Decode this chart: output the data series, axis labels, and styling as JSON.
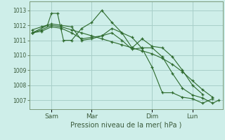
{
  "background_color": "#ceeee9",
  "grid_color": "#a8cfc9",
  "line_color": "#2d6a2d",
  "x_tick_labels": [
    "Sam",
    "Mar",
    "Dim",
    "Lun"
  ],
  "x_tick_positions": [
    1,
    3,
    6,
    8
  ],
  "ylabel": "Pression niveau de la mer( hPa )",
  "ylim": [
    1006.4,
    1013.6
  ],
  "yticks": [
    1007,
    1008,
    1009,
    1010,
    1011,
    1012,
    1013
  ],
  "xlim": [
    -0.1,
    9.5
  ],
  "lines": [
    {
      "x": [
        0.05,
        0.8,
        1.0,
        1.3,
        1.6,
        2.0,
        2.5,
        3.0,
        3.5,
        4.0,
        4.5,
        5.0,
        5.5,
        6.0,
        6.5,
        7.0,
        7.5,
        8.0,
        8.5,
        9.0
      ],
      "y": [
        1011.5,
        1012.0,
        1012.8,
        1012.8,
        1011.0,
        1011.0,
        1011.8,
        1012.2,
        1013.0,
        1012.2,
        1011.5,
        1011.2,
        1010.45,
        1009.2,
        1007.5,
        1007.5,
        1007.2,
        1007.1,
        1006.8,
        1007.1
      ]
    },
    {
      "x": [
        0.05,
        0.5,
        1.0,
        1.5,
        2.0,
        2.5,
        3.0,
        3.5,
        4.0,
        4.5,
        5.0,
        5.5,
        6.0,
        6.5,
        7.0,
        7.5,
        8.0,
        8.5
      ],
      "y": [
        1011.7,
        1011.9,
        1012.1,
        1012.0,
        1011.9,
        1011.0,
        1011.1,
        1011.3,
        1011.8,
        1011.5,
        1010.5,
        1011.1,
        1010.6,
        1010.5,
        1009.9,
        1009.0,
        1008.0,
        1007.4
      ]
    },
    {
      "x": [
        0.05,
        0.5,
        1.0,
        1.5,
        2.0,
        2.5,
        3.0,
        3.5,
        4.0,
        4.5,
        5.0,
        5.5,
        6.0,
        6.5,
        7.0,
        7.5,
        8.0,
        8.5,
        9.0
      ],
      "y": [
        1011.5,
        1011.7,
        1012.0,
        1011.9,
        1011.7,
        1011.5,
        1011.3,
        1011.1,
        1010.9,
        1010.7,
        1010.5,
        1010.3,
        1010.1,
        1009.8,
        1009.4,
        1008.9,
        1008.3,
        1007.7,
        1007.2
      ]
    },
    {
      "x": [
        0.05,
        0.5,
        1.0,
        1.5,
        2.0,
        2.5,
        3.0,
        3.5,
        4.0,
        4.5,
        5.0,
        5.5,
        6.0,
        6.5,
        7.0,
        7.5,
        8.0,
        8.5,
        9.0,
        9.3
      ],
      "y": [
        1011.5,
        1011.6,
        1011.9,
        1011.8,
        1011.5,
        1011.1,
        1011.2,
        1011.3,
        1011.5,
        1011.0,
        1010.4,
        1010.5,
        1010.5,
        1009.9,
        1008.8,
        1007.8,
        1007.35,
        1007.15,
        1006.8,
        1007.0
      ]
    }
  ]
}
